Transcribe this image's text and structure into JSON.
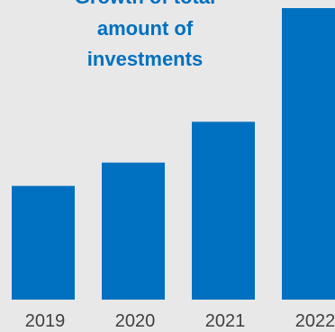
{
  "chart_data": {
    "type": "bar",
    "title": "Growth of total amount of investments",
    "title_lines": [
      "Growth of total",
      "amount of",
      "investments"
    ],
    "categories": [
      "2019",
      "2020",
      "2021",
      "2022"
    ],
    "values": [
      39,
      47,
      61,
      100
    ],
    "ylim": [
      0,
      100
    ],
    "grid": false,
    "legend": "none",
    "bar_color": "#0070c0",
    "title_color": "#0070c0",
    "label_color": "#404040",
    "background_color": "#e8e8e8"
  }
}
